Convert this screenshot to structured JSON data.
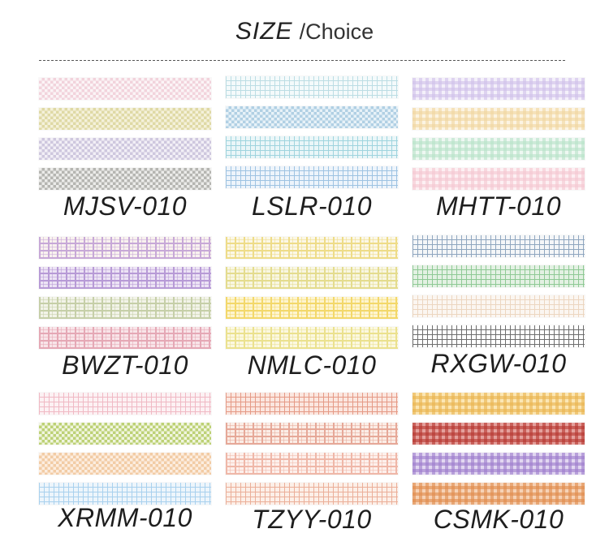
{
  "header": {
    "title": "SIZE",
    "subtitle": "/Choice"
  },
  "products": [
    {
      "code": "MJSV-010",
      "tapes": [
        {
          "bg": "#fbf3f6",
          "line": "#f1cfd9",
          "style": "check"
        },
        {
          "bg": "#f3f0d6",
          "line": "#dcd59c",
          "style": "check"
        },
        {
          "bg": "#f1eef6",
          "line": "#c9c2db",
          "style": "check"
        },
        {
          "bg": "#e9e9e7",
          "line": "#aeaea9",
          "style": "check"
        }
      ]
    },
    {
      "code": "LSLR-010",
      "tapes": [
        {
          "bg": "#f4fafb",
          "line": "#bcdde4",
          "style": "grid"
        },
        {
          "bg": "#e6f1f8",
          "line": "#a9cce2",
          "style": "check"
        },
        {
          "bg": "#eaf6f8",
          "line": "#9fd4de",
          "style": "grid"
        },
        {
          "bg": "#edf4fb",
          "line": "#9ec3e2",
          "style": "grid"
        }
      ]
    },
    {
      "code": "MHTT-010",
      "tapes": [
        {
          "bg": "#f4f0fa",
          "line": "#cfc0ea",
          "style": "gingham"
        },
        {
          "bg": "#fcf4e3",
          "line": "#f0d59f",
          "style": "gingham"
        },
        {
          "bg": "#eef8f2",
          "line": "#b8e2c8",
          "style": "gingham"
        },
        {
          "bg": "#fdf0f3",
          "line": "#f4c6d1",
          "style": "gingham"
        }
      ]
    },
    {
      "code": "BWZT-010",
      "tapes": [
        {
          "bg": "#f8f1ee",
          "line": "#c7a8d7",
          "style": "plaid"
        },
        {
          "bg": "#ece3f4",
          "line": "#b79ad6",
          "style": "plaid"
        },
        {
          "bg": "#f2f3e8",
          "line": "#c6cfa8",
          "style": "plaid"
        },
        {
          "bg": "#f8e4e8",
          "line": "#e5a8b5",
          "style": "plaid"
        }
      ]
    },
    {
      "code": "NMLC-010",
      "tapes": [
        {
          "bg": "#fbf7e6",
          "line": "#eedc88",
          "style": "plaid"
        },
        {
          "bg": "#f8f6e2",
          "line": "#e4dc8e",
          "style": "plaid"
        },
        {
          "bg": "#fdf4cf",
          "line": "#f3d86a",
          "style": "plaid"
        },
        {
          "bg": "#fbf8e0",
          "line": "#ebe18e",
          "style": "plaid"
        }
      ]
    },
    {
      "code": "RXGW-010",
      "tapes": [
        {
          "bg": "#f4f6f8",
          "line": "#8fa6bf",
          "style": "grid"
        },
        {
          "bg": "#e3f1e3",
          "line": "#8fc995",
          "style": "grid"
        },
        {
          "bg": "#fbf6f1",
          "line": "#ecd6c0",
          "style": "grid"
        },
        {
          "bg": "#ffffff",
          "line": "#6e6e6e",
          "style": "grid"
        }
      ]
    },
    {
      "code": "XRMM-010",
      "tapes": [
        {
          "bg": "#fcf1f3",
          "line": "#f0b9c4",
          "style": "grid"
        },
        {
          "bg": "#eff4dc",
          "line": "#b6cd68",
          "style": "check"
        },
        {
          "bg": "#fcecdc",
          "line": "#f1c79c",
          "style": "check"
        },
        {
          "bg": "#edf5fb",
          "line": "#a9d1ee",
          "style": "grid"
        }
      ]
    },
    {
      "code": "TZYY-010",
      "tapes": [
        {
          "bg": "#fbe6df",
          "line": "#e59a86",
          "style": "grid"
        },
        {
          "bg": "#fbede6",
          "line": "#e6a898",
          "style": "plaid"
        },
        {
          "bg": "#fdf0ec",
          "line": "#efb7a8",
          "style": "plaid"
        },
        {
          "bg": "#fcefe8",
          "line": "#ebaf99",
          "style": "grid"
        }
      ]
    },
    {
      "code": "CSMK-010",
      "tapes": [
        {
          "bg": "#fbe6b4",
          "line": "#e9b34e",
          "style": "gingham"
        },
        {
          "bg": "#e4a09c",
          "line": "#b6352f",
          "style": "gingham"
        },
        {
          "bg": "#e2d7f1",
          "line": "#9d7ccc",
          "style": "gingham"
        },
        {
          "bg": "#f6d2b6",
          "line": "#e08a4a",
          "style": "gingham"
        }
      ]
    }
  ]
}
